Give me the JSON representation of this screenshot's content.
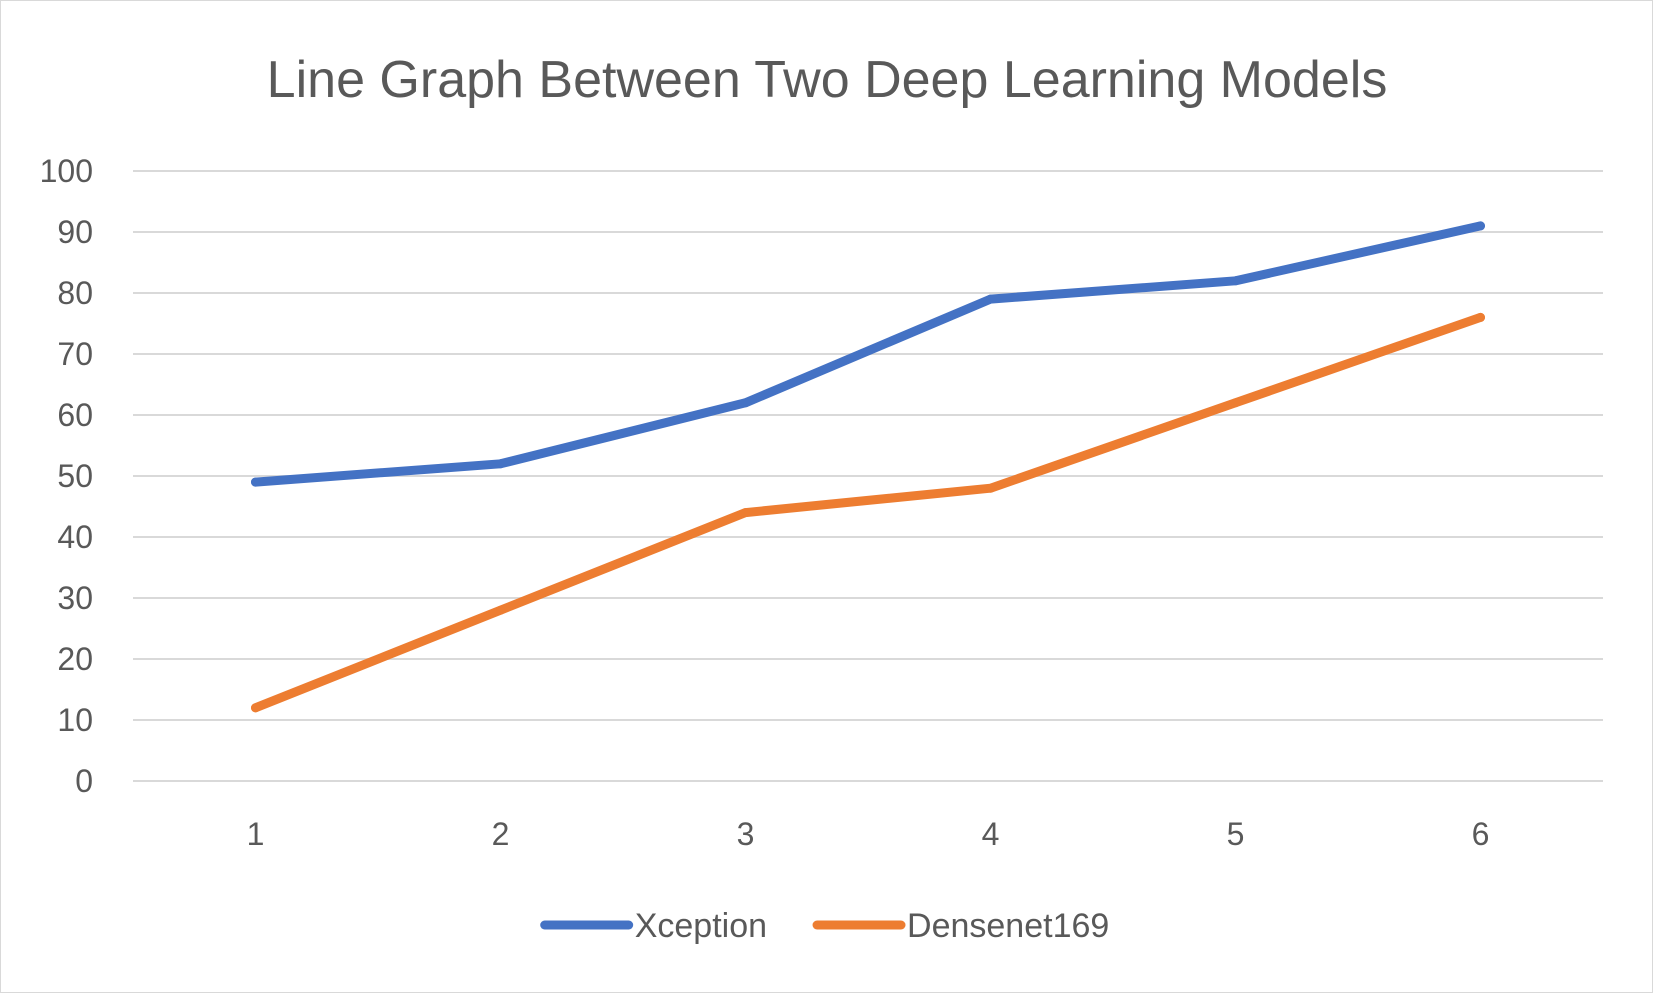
{
  "chart_data": {
    "type": "line",
    "title": "Line Graph Between Two Deep Learning Models",
    "xlabel": "",
    "ylabel": "",
    "categories": [
      "1",
      "2",
      "3",
      "4",
      "5",
      "6"
    ],
    "ylim": [
      0,
      100
    ],
    "yticks": [
      "0",
      "10",
      "20",
      "30",
      "40",
      "50",
      "60",
      "70",
      "80",
      "90",
      "100"
    ],
    "grid": true,
    "legend_position": "bottom",
    "series": [
      {
        "name": "Xception",
        "color": "#4472c4",
        "values": [
          49,
          52,
          62,
          79,
          82,
          91
        ]
      },
      {
        "name": "Densenet169",
        "color": "#ed7d31",
        "values": [
          12,
          28,
          44,
          48,
          62,
          76
        ]
      }
    ]
  }
}
